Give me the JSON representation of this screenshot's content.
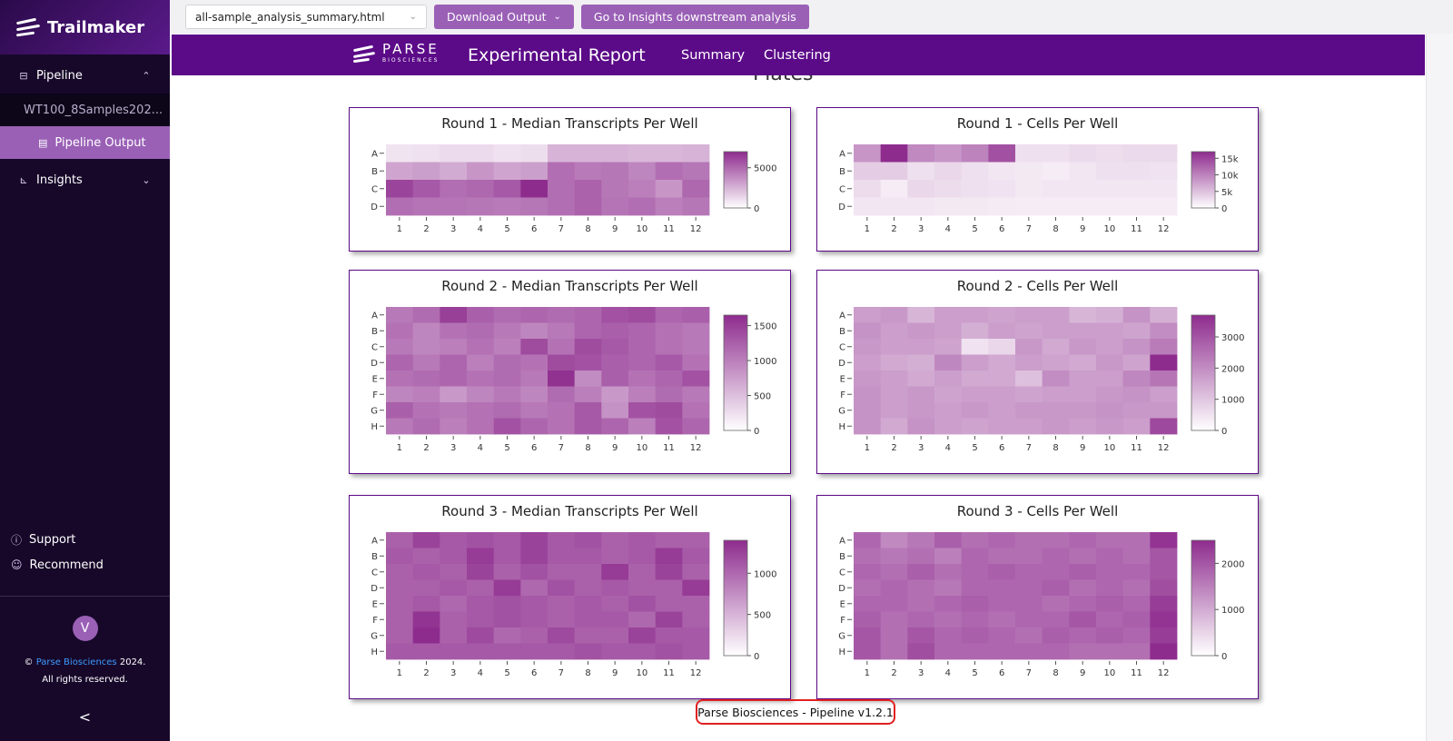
{
  "app": {
    "name": "Trailmaker"
  },
  "sidebar": {
    "pipeline_label": "Pipeline",
    "run_name": "WT100_8Samples202...",
    "output_label": "Pipeline Output",
    "insights_label": "Insights",
    "support_label": "Support",
    "recommend_label": "Recommend",
    "avatar_initial": "V",
    "copyright_prefix": "©",
    "copyright_link": "Parse Biosciences",
    "copyright_year": "2024.",
    "rights": "All rights reserved.",
    "collapse_glyph": "<"
  },
  "topbar": {
    "file_select_value": "all-sample_analysis_summary.html",
    "download_label": "Download Output",
    "insights_btn_label": "Go to Insights downstream analysis"
  },
  "report": {
    "logo_word": "PARSE",
    "logo_sub": "BIOSCIENCES",
    "title": "Experimental Report",
    "nav_summary": "Summary",
    "nav_clustering": "Clustering",
    "section_title": "Plates",
    "footer": "Parse Biosciences - Pipeline v1.2.1"
  },
  "colors": {
    "accent": "#9a60b6",
    "header": "#5b0a88",
    "heat_max": "#8e2c8e",
    "heat_min": "#ffffff"
  },
  "chart_data": [
    {
      "type": "heatmap",
      "title": "Round 1 - Median Transcripts Per Well",
      "rows": [
        "A",
        "B",
        "C",
        "D"
      ],
      "cols": [
        "1",
        "2",
        "3",
        "4",
        "5",
        "6",
        "7",
        "8",
        "9",
        "10",
        "11",
        "12"
      ],
      "colorbar": {
        "ticks": [
          "5000",
          "0"
        ],
        "max": 7000
      },
      "values": [
        [
          900,
          1000,
          1200,
          1200,
          1000,
          1100,
          2500,
          2500,
          2500,
          2400,
          2400,
          2500
        ],
        [
          3000,
          3200,
          2800,
          3500,
          3000,
          3200,
          4800,
          4400,
          4500,
          4000,
          4800,
          4500
        ],
        [
          6200,
          5500,
          4800,
          5000,
          5500,
          7000,
          4800,
          5200,
          4500,
          4200,
          3500,
          5000
        ],
        [
          4800,
          4600,
          4600,
          4500,
          4400,
          4500,
          4800,
          5200,
          4600,
          4800,
          4200,
          4500
        ]
      ]
    },
    {
      "type": "heatmap",
      "title": "Round 1 - Cells Per Well",
      "rows": [
        "A",
        "B",
        "C",
        "D"
      ],
      "cols": [
        "1",
        "2",
        "3",
        "4",
        "5",
        "6",
        "7",
        "8",
        "9",
        "10",
        "11",
        "12"
      ],
      "colorbar": {
        "ticks": [
          "15k",
          "10k",
          "5k",
          "0"
        ],
        "max": 17000
      },
      "values": [
        [
          8500,
          17000,
          9500,
          8500,
          10000,
          14000,
          2500,
          2500,
          3000,
          2700,
          3000,
          3000
        ],
        [
          4000,
          4000,
          2500,
          3200,
          2500,
          2000,
          1800,
          1500,
          2000,
          2500,
          2500,
          2300
        ],
        [
          2800,
          1500,
          3200,
          2800,
          2500,
          2300,
          1800,
          2000,
          2000,
          2000,
          2000,
          2000
        ],
        [
          2000,
          2000,
          2000,
          1800,
          1800,
          1600,
          1500,
          1500,
          1500,
          1500,
          1500,
          1500
        ]
      ]
    },
    {
      "type": "heatmap",
      "title": "Round 2 - Median Transcripts Per Well",
      "rows": [
        "A",
        "B",
        "C",
        "D",
        "E",
        "F",
        "G",
        "H"
      ],
      "cols": [
        "1",
        "2",
        "3",
        "4",
        "5",
        "6",
        "7",
        "8",
        "9",
        "10",
        "11",
        "12"
      ],
      "colorbar": {
        "ticks": [
          "1500",
          "1000",
          "500",
          "0"
        ],
        "max": 1650
      },
      "values": [
        [
          1050,
          1150,
          1500,
          1250,
          1150,
          1200,
          1150,
          1200,
          1350,
          1400,
          1200,
          1250
        ],
        [
          1100,
          950,
          1100,
          1150,
          1050,
          950,
          1050,
          1200,
          1250,
          1200,
          1100,
          1050
        ],
        [
          1050,
          950,
          1000,
          1100,
          1000,
          1400,
          1100,
          1400,
          1300,
          1200,
          1100,
          1050
        ],
        [
          1200,
          1050,
          1200,
          1000,
          1150,
          1100,
          1400,
          1350,
          1250,
          1200,
          1300,
          1100
        ],
        [
          1100,
          1150,
          1200,
          1100,
          1150,
          1050,
          1600,
          900,
          1250,
          1100,
          1200,
          1350
        ],
        [
          950,
          1000,
          800,
          950,
          1050,
          950,
          1150,
          1000,
          800,
          1000,
          1150,
          1050
        ],
        [
          1250,
          1100,
          1050,
          1100,
          1150,
          1050,
          1100,
          1300,
          850,
          1350,
          1400,
          1100
        ],
        [
          1050,
          1150,
          1000,
          1100,
          1350,
          1200,
          1100,
          1300,
          1200,
          1000,
          1350,
          1200
        ]
      ]
    },
    {
      "type": "heatmap",
      "title": "Round 2 - Cells Per Well",
      "rows": [
        "A",
        "B",
        "C",
        "D",
        "E",
        "F",
        "G",
        "H"
      ],
      "cols": [
        "1",
        "2",
        "3",
        "4",
        "5",
        "6",
        "7",
        "8",
        "9",
        "10",
        "11",
        "12"
      ],
      "colorbar": {
        "ticks": [
          "3000",
          "2000",
          "1000",
          "0"
        ],
        "max": 3700
      },
      "values": [
        [
          1700,
          1800,
          1300,
          1700,
          1700,
          1600,
          1700,
          1700,
          1300,
          1400,
          1900,
          1400
        ],
        [
          1900,
          1700,
          1800,
          1700,
          1400,
          1700,
          1600,
          1700,
          1700,
          1700,
          1600,
          2000
        ],
        [
          1800,
          1700,
          1700,
          1600,
          500,
          700,
          1800,
          1500,
          1800,
          1700,
          1900,
          2300
        ],
        [
          1700,
          1500,
          1400,
          2100,
          1700,
          1500,
          1700,
          1600,
          1500,
          1800,
          1600,
          3700
        ],
        [
          1800,
          1700,
          1500,
          1700,
          1500,
          1500,
          1100,
          2000,
          1700,
          1700,
          2100,
          2400
        ],
        [
          1900,
          1700,
          1800,
          1600,
          1700,
          1700,
          1600,
          1700,
          1700,
          1800,
          1900,
          1700
        ],
        [
          1900,
          1700,
          1800,
          1700,
          1800,
          1700,
          1800,
          1800,
          1800,
          1900,
          1800,
          1800
        ],
        [
          1900,
          1500,
          1900,
          1700,
          1600,
          1700,
          1700,
          1800,
          1700,
          1800,
          1700,
          3200
        ]
      ]
    },
    {
      "type": "heatmap",
      "title": "Round 3 - Median Transcripts Per Well",
      "rows": [
        "A",
        "B",
        "C",
        "D",
        "E",
        "F",
        "G",
        "H"
      ],
      "cols": [
        "1",
        "2",
        "3",
        "4",
        "5",
        "6",
        "7",
        "8",
        "9",
        "10",
        "11",
        "12"
      ],
      "colorbar": {
        "ticks": [
          "1000",
          "500",
          "0"
        ],
        "max": 1400
      },
      "values": [
        [
          1050,
          1250,
          1100,
          1150,
          1100,
          1250,
          1100,
          1150,
          1050,
          1100,
          1050,
          1050
        ],
        [
          1100,
          1050,
          1100,
          1300,
          1100,
          1250,
          1100,
          1100,
          1050,
          1100,
          1300,
          1100
        ],
        [
          1050,
          1100,
          1050,
          1250,
          1050,
          1150,
          1050,
          1050,
          1300,
          1050,
          1250,
          1050
        ],
        [
          1050,
          1050,
          1100,
          1050,
          1300,
          1000,
          1150,
          1050,
          1100,
          1050,
          1050,
          1300
        ],
        [
          1050,
          1100,
          1000,
          1100,
          1150,
          1100,
          1050,
          1100,
          1050,
          1150,
          1050,
          1050
        ],
        [
          1050,
          1350,
          1050,
          1100,
          1150,
          1100,
          1050,
          1100,
          1100,
          1000,
          1250,
          1050
        ],
        [
          1050,
          1400,
          1050,
          1200,
          1000,
          1050,
          1200,
          1050,
          1050,
          1250,
          1100,
          1100
        ],
        [
          1100,
          1100,
          1100,
          1100,
          1100,
          1100,
          1100,
          1150,
          1100,
          1100,
          1150,
          1100
        ]
      ]
    },
    {
      "type": "heatmap",
      "title": "Round 3 - Cells Per Well",
      "rows": [
        "A",
        "B",
        "C",
        "D",
        "E",
        "F",
        "G",
        "H"
      ],
      "cols": [
        "1",
        "2",
        "3",
        "4",
        "5",
        "6",
        "7",
        "8",
        "9",
        "10",
        "11",
        "12"
      ],
      "colorbar": {
        "ticks": [
          "2000",
          "1000",
          "0"
        ],
        "max": 2500
      },
      "values": [
        [
          1800,
          1400,
          1600,
          1900,
          1700,
          1800,
          1700,
          1700,
          1800,
          1700,
          1700,
          2400
        ],
        [
          1700,
          1600,
          1700,
          1500,
          1800,
          1700,
          1700,
          1800,
          1700,
          1800,
          1700,
          2000
        ],
        [
          1800,
          1700,
          1900,
          1700,
          1800,
          1900,
          1800,
          1800,
          1900,
          1800,
          1800,
          2000
        ],
        [
          1700,
          1800,
          1700,
          1600,
          1800,
          1800,
          1800,
          1900,
          1700,
          1800,
          1700,
          2100
        ],
        [
          1800,
          1800,
          1700,
          1800,
          1900,
          1800,
          1800,
          1700,
          1800,
          1900,
          1800,
          2300
        ],
        [
          1900,
          1700,
          1800,
          1700,
          1800,
          1700,
          1800,
          1800,
          2000,
          1800,
          1900,
          2400
        ],
        [
          2000,
          1700,
          2000,
          1800,
          1900,
          1800,
          1700,
          1900,
          1800,
          1900,
          1800,
          2300
        ],
        [
          2000,
          1700,
          2100,
          1800,
          1800,
          1800,
          1800,
          1800,
          1700,
          1700,
          1700,
          2500
        ]
      ]
    }
  ]
}
